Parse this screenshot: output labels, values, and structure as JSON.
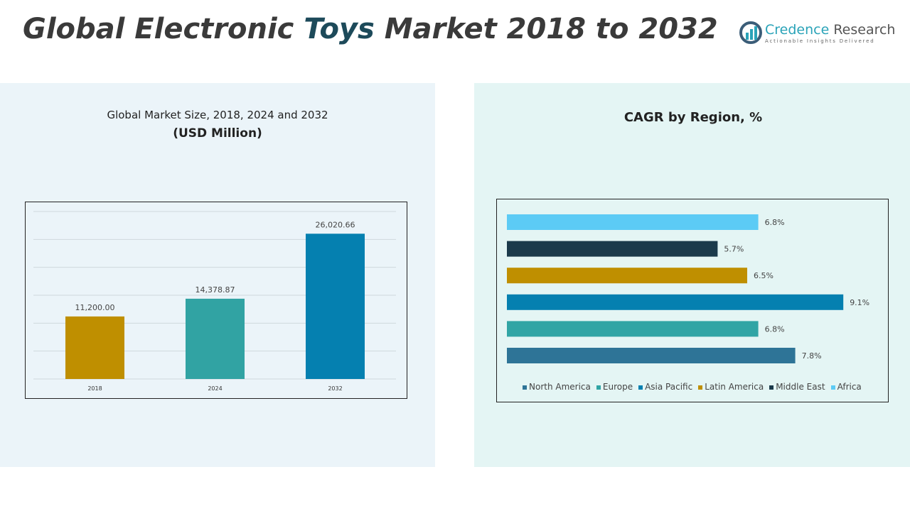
{
  "header": {
    "title_pre": "Global Electronic ",
    "title_hl": "Toys",
    "title_post": " Market 2018 to 2032"
  },
  "logo": {
    "name_a": "Credence",
    "name_b": " Research",
    "tagline": "Actionable Insights Delivered"
  },
  "chart_data": [
    {
      "type": "bar",
      "title": "Global Market Size, 2018, 2024 and 2032",
      "subtitle": "(USD Million)",
      "categories": [
        "2018",
        "2024",
        "2032"
      ],
      "values": [
        11200.0,
        14378.87,
        26020.66
      ],
      "labels": [
        "11,200.00",
        "14,378.87",
        "26,020.66"
      ],
      "colors": [
        "#bf8f00",
        "#31a3a3",
        "#0580b0"
      ],
      "ylim": [
        0,
        30000
      ],
      "grid": true
    },
    {
      "type": "bar",
      "orientation": "horizontal",
      "title": "CAGR by Region, %",
      "categories": [
        "Africa",
        "Middle East",
        "Latin America",
        "Asia Pacific",
        "Europe",
        "North America"
      ],
      "values": [
        6.8,
        5.7,
        6.5,
        9.1,
        6.8,
        7.8
      ],
      "labels": [
        "6.8%",
        "5.7%",
        "6.5%",
        "9.1%",
        "6.8%",
        "7.8%"
      ],
      "colors": [
        "#5ccbf5",
        "#1b3a4b",
        "#bf8f00",
        "#0580b0",
        "#31a5a5",
        "#2e7497"
      ],
      "legend": {
        "position": "bottom",
        "entries": [
          "North America",
          "Europe",
          "Asia Pacific",
          "Latin America",
          "Middle East",
          "Africa"
        ]
      }
    }
  ]
}
